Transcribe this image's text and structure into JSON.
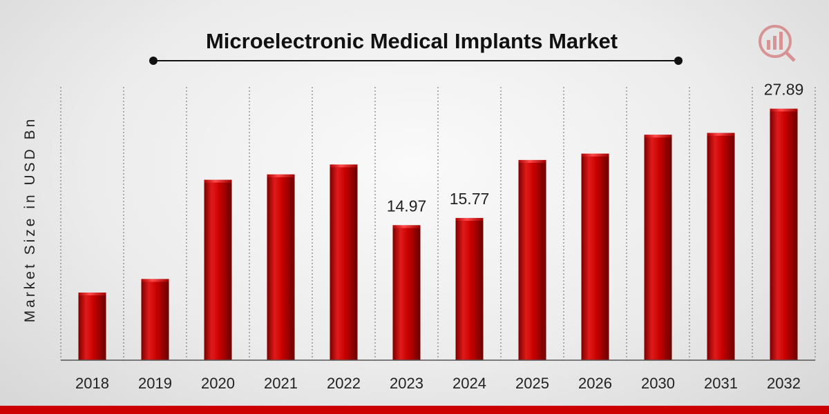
{
  "chart_data": {
    "type": "bar",
    "title": "Microelectronic Medical Implants Market",
    "ylabel": "Market Size in USD Bn",
    "xlabel": "",
    "categories": [
      "2018",
      "2019",
      "2020",
      "2021",
      "2022",
      "2023",
      "2024",
      "2025",
      "2026",
      "2030",
      "2031",
      "2032"
    ],
    "values": [
      7.5,
      9.0,
      20.0,
      20.6,
      21.7,
      14.97,
      15.77,
      22.2,
      22.9,
      25.0,
      25.2,
      27.89
    ],
    "data_labels": [
      {
        "category": "2023",
        "text": "14.97"
      },
      {
        "category": "2024",
        "text": "15.77"
      },
      {
        "category": "2032",
        "text": "27.89"
      }
    ],
    "ylim": [
      0,
      30
    ],
    "grid": "vertical-dashed",
    "bar_color": "#c00000",
    "accent_color": "#cc0000"
  }
}
